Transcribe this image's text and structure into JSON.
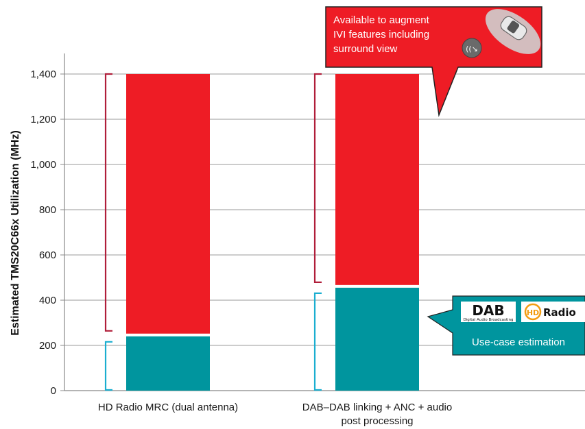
{
  "chart_data": {
    "type": "bar",
    "stacked": true,
    "ylabel": "Estimated TMS20C66x Utilization (MHz)",
    "xlabel": "",
    "ylim": [
      0,
      1400
    ],
    "yticks": [
      0,
      200,
      400,
      600,
      800,
      1000,
      1200,
      1400
    ],
    "ytick_labels": [
      "0",
      "200",
      "400",
      "600",
      "800",
      "1,000",
      "1,200",
      "1,400"
    ],
    "grid": true,
    "categories": [
      [
        "HD Radio MRC (dual antenna)"
      ],
      [
        "DAB–DAB linking + ANC + audio",
        "post processing"
      ]
    ],
    "series": [
      {
        "values": [
          240,
          455
        ],
        "color": "#00959e"
      },
      {
        "values": [
          1160,
          945
        ],
        "color": "#ee1c25"
      }
    ],
    "annotations": {
      "red_callout": [
        "Available to augment",
        "IVI features including",
        "surround view"
      ],
      "teal_callout": {
        "logo_dab": "DAB",
        "logo_dab_sub": "Digital Audio Broadcasting",
        "logo_hd": "HD",
        "logo_radio": "Radio",
        "caption": "Use-case estimation"
      }
    },
    "colors": {
      "teal": "#00959e",
      "red": "#ee1c25",
      "bracket_red": "#b01e3a",
      "bracket_teal": "#1aaed0",
      "grid": "#bbbbbb"
    }
  }
}
